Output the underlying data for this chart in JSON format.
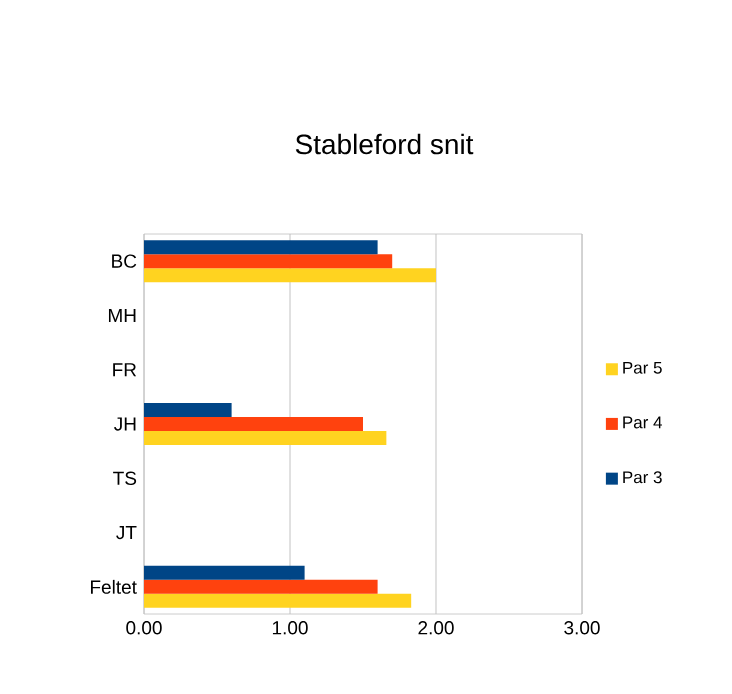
{
  "chart_data": {
    "type": "bar",
    "orientation": "horizontal",
    "title": "Stableford snit",
    "categories": [
      "BC",
      "MH",
      "FR",
      "JH",
      "TS",
      "JT",
      "Feltet"
    ],
    "series": [
      {
        "name": "Par 5",
        "color": "#ffd320",
        "values": [
          2.0,
          null,
          null,
          1.66,
          null,
          null,
          1.83
        ]
      },
      {
        "name": "Par 4",
        "color": "#ff420e",
        "values": [
          1.7,
          null,
          null,
          1.5,
          null,
          null,
          1.6
        ]
      },
      {
        "name": "Par 3",
        "color": "#004586",
        "values": [
          1.6,
          null,
          null,
          0.6,
          null,
          null,
          1.1
        ]
      }
    ],
    "xlim": [
      0,
      3
    ],
    "xticks": [
      {
        "value": 0,
        "label": "0.00"
      },
      {
        "value": 1,
        "label": "1.00"
      },
      {
        "value": 2,
        "label": "2.00"
      },
      {
        "value": 3,
        "label": "3.00"
      }
    ],
    "grid": "x",
    "legend": "right"
  }
}
